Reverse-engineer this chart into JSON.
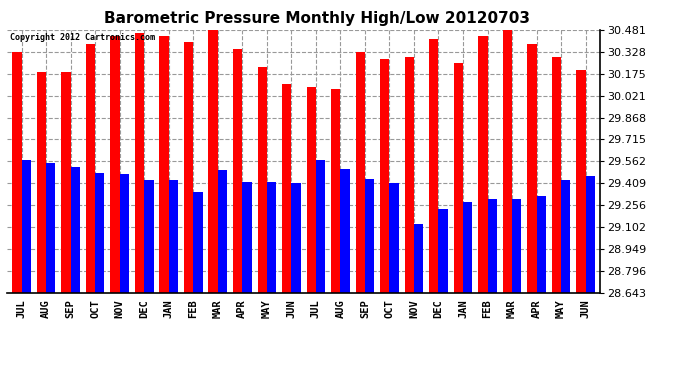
{
  "title": "Barometric Pressure Monthly High/Low 20120703",
  "copyright": "Copyright 2012 Cartronics.com",
  "months": [
    "JUL",
    "AUG",
    "SEP",
    "OCT",
    "NOV",
    "DEC",
    "JAN",
    "FEB",
    "MAR",
    "APR",
    "MAY",
    "JUN",
    "JUL",
    "AUG",
    "SEP",
    "OCT",
    "NOV",
    "DEC",
    "JAN",
    "FEB",
    "MAR",
    "APR",
    "MAY",
    "JUN"
  ],
  "highs": [
    30.33,
    30.19,
    30.19,
    30.38,
    30.44,
    30.46,
    30.44,
    30.4,
    30.53,
    30.35,
    30.22,
    30.1,
    30.08,
    30.07,
    30.33,
    30.28,
    30.29,
    30.42,
    30.25,
    30.44,
    30.48,
    30.38,
    30.29,
    30.2
  ],
  "lows": [
    29.57,
    29.55,
    29.52,
    29.48,
    29.47,
    29.43,
    29.43,
    29.35,
    29.5,
    29.42,
    29.42,
    29.41,
    29.57,
    29.51,
    29.44,
    29.41,
    29.12,
    29.23,
    29.28,
    29.3,
    29.3,
    29.32,
    29.43,
    29.46
  ],
  "high_color": "#ff0000",
  "low_color": "#0000ff",
  "bg_color": "#ffffff",
  "plot_bg_color": "#ffffff",
  "grid_color": "#aaaaaa",
  "title_fontsize": 11,
  "yticks": [
    28.643,
    28.796,
    28.949,
    29.102,
    29.256,
    29.409,
    29.562,
    29.715,
    29.868,
    30.021,
    30.175,
    30.328,
    30.481
  ],
  "ymin": 28.643,
  "ymax": 30.481,
  "bar_width": 0.38
}
